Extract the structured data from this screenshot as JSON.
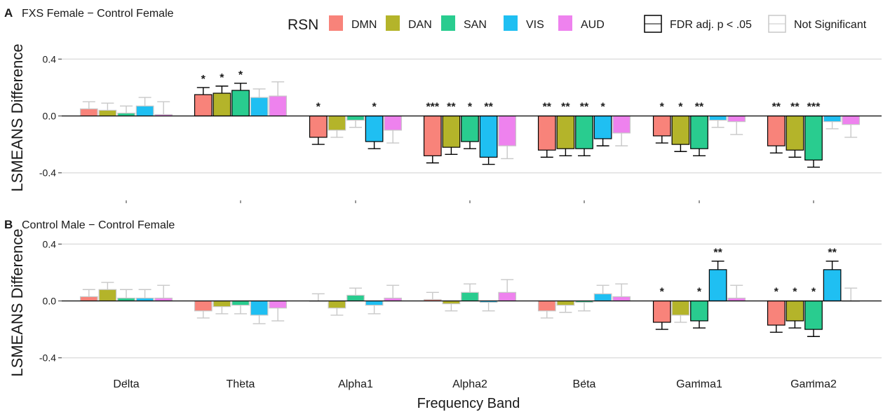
{
  "colors": {
    "DMN": "#F8837A",
    "DAN": "#B4B42A",
    "SAN": "#29CC8F",
    "VIS": "#1FBFF2",
    "AUD": "#EE82EE",
    "sig_outline": "#000000",
    "ns_outline": "#C8C8C8",
    "grid": "#D0D0D0"
  },
  "legend": {
    "title": "RSN",
    "networks": [
      "DMN",
      "DAN",
      "SAN",
      "VIS",
      "AUD"
    ],
    "outline_labels": [
      "FDR adj. p < .05",
      "Not Significant"
    ]
  },
  "axes": {
    "xlabel": "Frequency Band",
    "ylabel": "LSMEANS Difference"
  },
  "chart_data": [
    {
      "type": "bar",
      "panel": "A",
      "title": "FXS Female − Control Female",
      "ylabel": "LSMEANS Difference",
      "xlabel": "",
      "ylim": [
        -0.48,
        0.44
      ],
      "yticks": [
        "0.4",
        "0.0",
        "-0.4"
      ],
      "grid": true,
      "categories": [
        "Delta",
        "Theta",
        "Alpha1",
        "Alpha2",
        "Beta",
        "Gamma1",
        "Gamma2"
      ],
      "series": [
        {
          "name": "DMN",
          "values": [
            0.05,
            0.15,
            -0.15,
            -0.28,
            -0.24,
            -0.14,
            -0.21
          ],
          "errors": [
            0.05,
            0.05,
            0.05,
            0.05,
            0.05,
            0.05,
            0.05
          ],
          "significance": [
            "",
            "*",
            "*",
            "***",
            "**",
            "*",
            "**"
          ]
        },
        {
          "name": "DAN",
          "values": [
            0.04,
            0.16,
            -0.1,
            -0.22,
            -0.23,
            -0.2,
            -0.24
          ],
          "errors": [
            0.05,
            0.05,
            0.05,
            0.05,
            0.05,
            0.05,
            0.05
          ],
          "significance": [
            "",
            "*",
            "",
            "**",
            "**",
            "*",
            "**"
          ]
        },
        {
          "name": "SAN",
          "values": [
            0.02,
            0.18,
            -0.03,
            -0.18,
            -0.23,
            -0.23,
            -0.31
          ],
          "errors": [
            0.05,
            0.05,
            0.05,
            0.05,
            0.05,
            0.05,
            0.05
          ],
          "significance": [
            "",
            "*",
            "",
            "*",
            "**",
            "**",
            "***"
          ]
        },
        {
          "name": "VIS",
          "values": [
            0.07,
            0.13,
            -0.18,
            -0.29,
            -0.16,
            -0.03,
            -0.04
          ],
          "errors": [
            0.06,
            0.06,
            0.05,
            0.05,
            0.05,
            0.05,
            0.05
          ],
          "significance": [
            "",
            "",
            "*",
            "**",
            "*",
            "",
            ""
          ]
        },
        {
          "name": "AUD",
          "values": [
            0.01,
            0.14,
            -0.1,
            -0.21,
            -0.12,
            -0.04,
            -0.06
          ],
          "errors": [
            0.09,
            0.1,
            0.09,
            0.09,
            0.09,
            0.09,
            0.09
          ],
          "significance": [
            "",
            "",
            "",
            "",
            "",
            "",
            ""
          ]
        }
      ]
    },
    {
      "type": "bar",
      "panel": "B",
      "title": "Control Male − Control Female",
      "ylabel": "LSMEANS Difference",
      "xlabel": "Frequency Band",
      "ylim": [
        -0.48,
        0.44
      ],
      "yticks": [
        "0.4",
        "0.0",
        "-0.4"
      ],
      "grid": true,
      "categories": [
        "Delta",
        "Theta",
        "Alpha1",
        "Alpha2",
        "Beta",
        "Gamma1",
        "Gamma2"
      ],
      "series": [
        {
          "name": "DMN",
          "values": [
            0.03,
            -0.07,
            0.0,
            0.01,
            -0.07,
            -0.15,
            -0.17
          ],
          "errors": [
            0.05,
            0.05,
            0.05,
            0.05,
            0.05,
            0.05,
            0.05
          ],
          "significance": [
            "",
            "",
            "",
            "",
            "",
            "*",
            "*"
          ]
        },
        {
          "name": "DAN",
          "values": [
            0.08,
            -0.04,
            -0.05,
            -0.02,
            -0.03,
            -0.1,
            -0.14
          ],
          "errors": [
            0.05,
            0.05,
            0.05,
            0.05,
            0.05,
            0.05,
            0.05
          ],
          "significance": [
            "",
            "",
            "",
            "",
            "",
            "",
            "*"
          ]
        },
        {
          "name": "SAN",
          "values": [
            0.02,
            -0.03,
            0.04,
            0.06,
            -0.01,
            -0.14,
            -0.2
          ],
          "errors": [
            0.06,
            0.06,
            0.05,
            0.06,
            0.06,
            0.05,
            0.05
          ],
          "significance": [
            "",
            "",
            "",
            "",
            "",
            "*",
            "*"
          ]
        },
        {
          "name": "VIS",
          "values": [
            0.02,
            -0.1,
            -0.03,
            -0.01,
            0.05,
            0.22,
            0.22
          ],
          "errors": [
            0.06,
            0.06,
            0.06,
            0.06,
            0.06,
            0.06,
            0.06
          ],
          "significance": [
            "",
            "",
            "",
            "",
            "",
            "**",
            "**"
          ]
        },
        {
          "name": "AUD",
          "values": [
            0.02,
            -0.05,
            0.02,
            0.06,
            0.03,
            0.02,
            0.0
          ],
          "errors": [
            0.09,
            0.09,
            0.09,
            0.09,
            0.09,
            0.09,
            0.09
          ],
          "significance": [
            "",
            "",
            "",
            "",
            "",
            "",
            ""
          ]
        }
      ]
    }
  ]
}
